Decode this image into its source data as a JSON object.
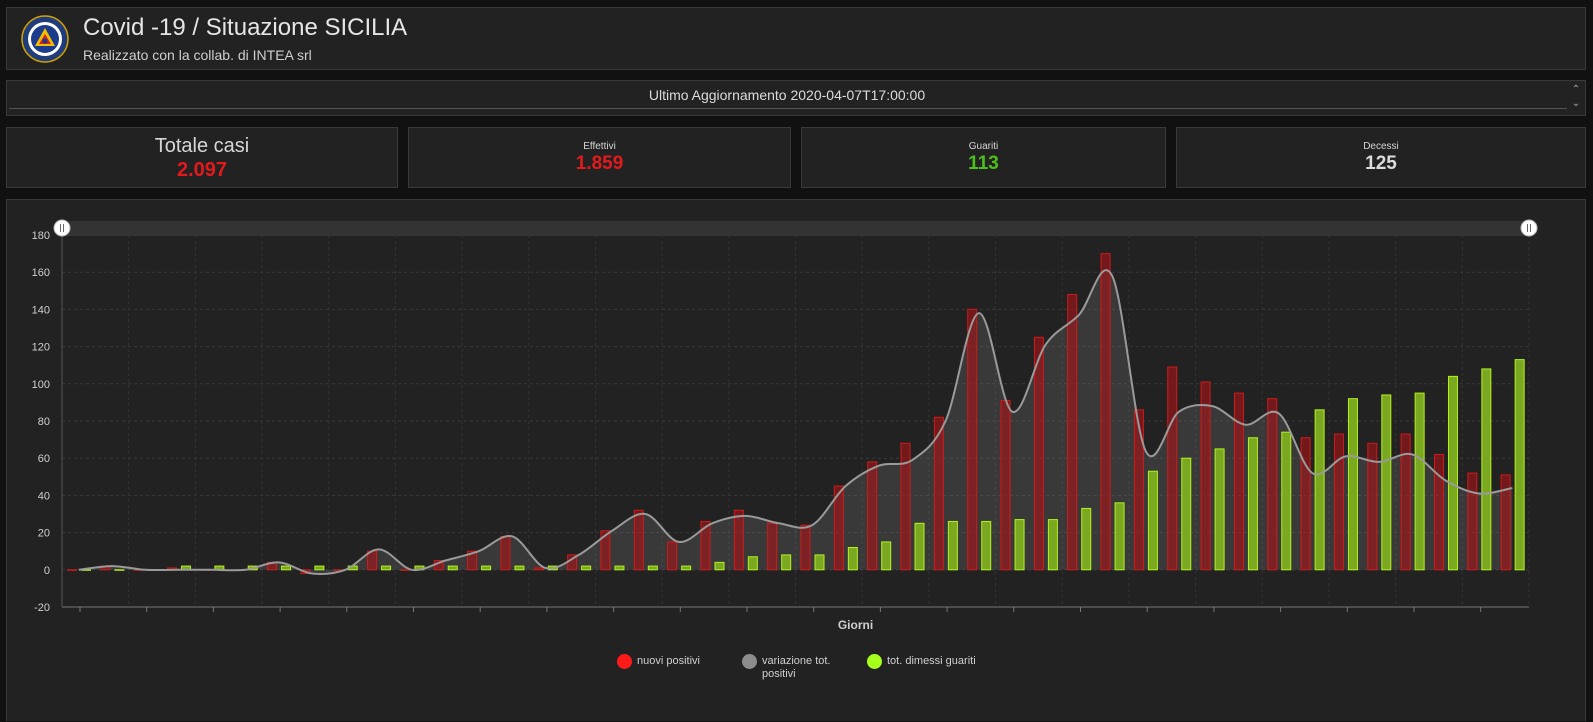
{
  "header": {
    "title": "Covid -19 / Situazione SICILIA",
    "subtitle": "Realizzato con la collab. di INTEA srl",
    "logo_icon": "regional-seal-icon"
  },
  "update": {
    "text": "Ultimo Aggiornamento 2020-04-07T17:00:00",
    "scroll_up_icon": "chevron-up-icon",
    "scroll_down_icon": "chevron-down-icon"
  },
  "stats": {
    "totale": {
      "label": "Totale casi",
      "value": "2.097",
      "color": "#e31a1c"
    },
    "effettivi": {
      "label": "Effettivi",
      "value": "1.859",
      "color": "#e31a1c"
    },
    "guariti": {
      "label": "Guariti",
      "value": "113",
      "color": "#4dc11a"
    },
    "decessi": {
      "label": "Decessi",
      "value": "125",
      "color": "#dcdcdc"
    }
  },
  "chart_data": {
    "type": "bar",
    "xlabel": "Giorni",
    "ylabel": "",
    "ylim": [
      -20,
      180
    ],
    "yticks": [
      -20,
      0,
      20,
      40,
      60,
      80,
      100,
      120,
      140,
      160,
      180
    ],
    "grid": true,
    "legend_position": "bottom",
    "has_range_slider": true,
    "categories_count": 44,
    "series": [
      {
        "name": "nuovi positivi",
        "kind": "bar",
        "color": "#e31a1c",
        "values": [
          0,
          2,
          0,
          1,
          0,
          0,
          4,
          -2,
          0,
          10,
          0,
          5,
          10,
          18,
          1,
          8,
          21,
          32,
          15,
          26,
          32,
          25,
          24,
          45,
          58,
          68,
          82,
          140,
          91,
          125,
          148,
          170,
          86,
          109,
          101,
          95,
          92,
          71,
          73,
          68,
          73,
          62,
          52,
          51
        ]
      },
      {
        "name": "variazione tot. positivi",
        "kind": "line",
        "color": "#8c8c8c",
        "values": [
          0,
          2,
          0,
          0,
          0,
          0,
          4,
          -2,
          0,
          11,
          0,
          5,
          10,
          18,
          1,
          8,
          21,
          30,
          15,
          25,
          29,
          25,
          24,
          45,
          56,
          59,
          80,
          138,
          85,
          121,
          137,
          158,
          64,
          85,
          88,
          78,
          84,
          52,
          61,
          58,
          62,
          48,
          41,
          44
        ]
      },
      {
        "name": "tot. dimessi guariti",
        "kind": "bar",
        "color": "#99e61a",
        "values": [
          0,
          0,
          0,
          2,
          2,
          2,
          2,
          2,
          2,
          2,
          2,
          2,
          2,
          2,
          2,
          2,
          2,
          2,
          2,
          4,
          7,
          8,
          8,
          12,
          15,
          25,
          26,
          26,
          27,
          27,
          33,
          36,
          53,
          60,
          65,
          71,
          74,
          86,
          92,
          94,
          95,
          104,
          108,
          113
        ]
      }
    ]
  }
}
